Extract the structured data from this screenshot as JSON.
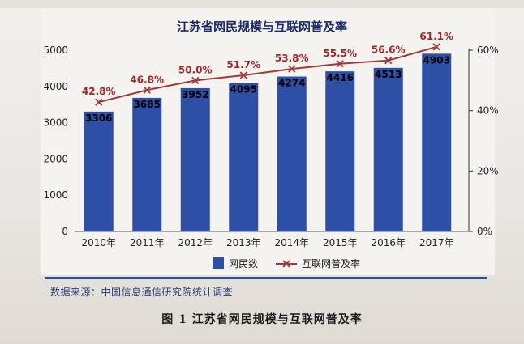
{
  "figure_caption": "图 1 江苏省网民规模与互联网普及率",
  "source_note": "数据来源：中国信息通信研究院统计调查",
  "colors": {
    "bar": "#2e4fa6",
    "line": "#a03a3a",
    "value_label": "#000000",
    "rate_label": "#a02828"
  },
  "chart_data": {
    "type": "bar",
    "title": "江苏省网民规模与互联网普及率",
    "categories": [
      "2010年",
      "2011年",
      "2012年",
      "2013年",
      "2014年",
      "2015年",
      "2016年",
      "2017年"
    ],
    "series": [
      {
        "name": "网民数",
        "type": "bar",
        "axis": "left",
        "values": [
          3306,
          3685,
          3952,
          4095,
          4274,
          4416,
          4513,
          4903
        ]
      },
      {
        "name": "互联网普及率",
        "type": "line",
        "axis": "right",
        "values": [
          42.8,
          46.8,
          50.0,
          51.7,
          53.8,
          55.5,
          56.6,
          61.1
        ],
        "labels": [
          "42.8%",
          "46.8%",
          "50.0%",
          "51.7%",
          "53.8%",
          "55.5%",
          "56.6%",
          "61.1%"
        ]
      }
    ],
    "left_axis": {
      "ylim": [
        0,
        5000
      ],
      "ticks": [
        "0",
        "1000",
        "2000",
        "3000",
        "4000",
        "5000"
      ]
    },
    "right_axis": {
      "ylim": [
        0,
        60
      ],
      "ticks": [
        "0%",
        "20%",
        "40%",
        "60%"
      ]
    },
    "legend": {
      "placement": "bottom",
      "items": [
        "网民数",
        "互联网普及率"
      ]
    },
    "grid": false
  }
}
